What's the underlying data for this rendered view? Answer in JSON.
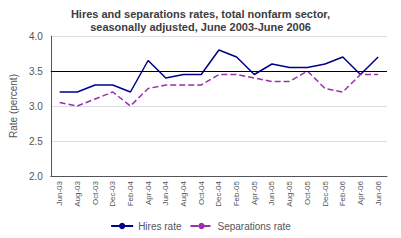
{
  "chart_data": {
    "type": "line",
    "title": "Hires and separations rates, total nonfarm sector,\nseasonally adjusted, June 2003-June 2006",
    "ylabel": "Rate (percent)",
    "categories": [
      "Jun-03",
      "Aug-03",
      "Oct-03",
      "Dec-03",
      "Feb-04",
      "Apr-04",
      "Jun-04",
      "Aug-04",
      "Oct-04",
      "Dec-04",
      "Feb-05",
      "Apr-05",
      "Jun-05",
      "Aug-05",
      "Oct-05",
      "Dec-05",
      "Feb-06",
      "Apr-06",
      "Jun-06"
    ],
    "series": [
      {
        "name": "Hires rate",
        "color": "#00008B",
        "line_style": "solid",
        "values": [
          3.2,
          3.2,
          3.3,
          3.3,
          3.2,
          3.65,
          3.4,
          3.45,
          3.45,
          3.8,
          3.7,
          3.45,
          3.6,
          3.55,
          3.55,
          3.6,
          3.7,
          3.45,
          3.7
        ]
      },
      {
        "name": "Separations rate",
        "color": "#9B30AA",
        "line_style": "dashed",
        "values": [
          3.05,
          3.0,
          3.1,
          3.2,
          3.0,
          3.25,
          3.3,
          3.3,
          3.3,
          3.45,
          3.45,
          3.4,
          3.35,
          3.35,
          3.5,
          3.25,
          3.2,
          3.45,
          3.45
        ]
      }
    ],
    "hline": 3.5,
    "ylim": [
      2.0,
      4.0
    ],
    "yticks": [
      {
        "value": 2,
        "label": "2.0"
      },
      2.5,
      {
        "value": 3,
        "label": "3.0"
      },
      3.5,
      {
        "value": 4,
        "label": "4.0"
      }
    ],
    "grid": true,
    "legend": "bottom"
  }
}
